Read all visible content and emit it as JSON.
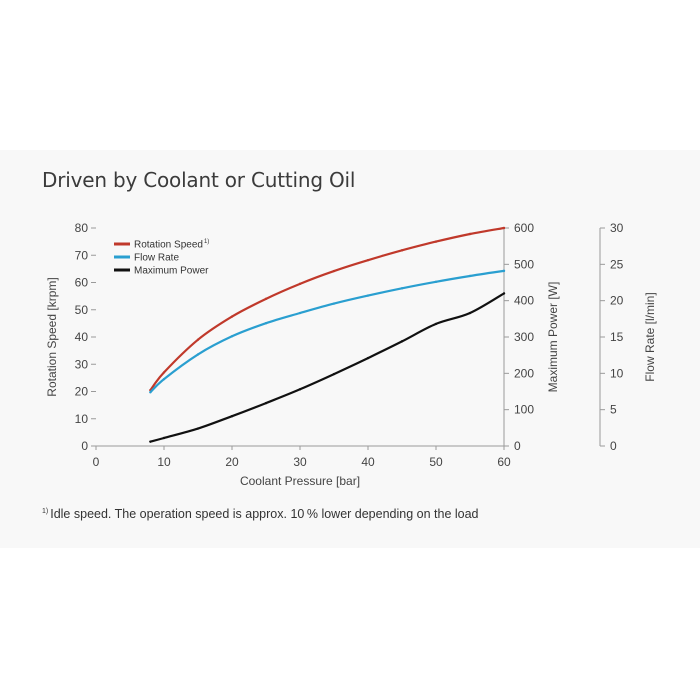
{
  "title": "Driven by Coolant or Cutting Oil",
  "footnote": {
    "marker": "1)",
    "text": "Idle speed. The operation speed is approx. 10 % lower depending on the load"
  },
  "chart_data": {
    "type": "line",
    "title": "Driven by Coolant or Cutting Oil",
    "xlabel": "Coolant Pressure [bar]",
    "xlim": [
      0,
      60
    ],
    "xticks": [
      0,
      10,
      20,
      30,
      40,
      50,
      60
    ],
    "axes": {
      "rotation": {
        "label": "Rotation Speed [krpm]",
        "lim": [
          0,
          80
        ],
        "ticks": [
          0,
          10,
          20,
          30,
          40,
          50,
          60,
          70,
          80
        ],
        "position": "left"
      },
      "power": {
        "label": "Maximum Power [W]",
        "lim": [
          0,
          600
        ],
        "ticks": [
          0,
          100,
          200,
          300,
          400,
          500,
          600
        ],
        "position": "right"
      },
      "flow": {
        "label": "Flow Rate [l/min]",
        "lim": [
          0,
          30
        ],
        "ticks": [
          0,
          5,
          10,
          15,
          20,
          25,
          30
        ],
        "position": "far-right"
      }
    },
    "legend_position": "top-left",
    "series": [
      {
        "name": "Rotation Speed",
        "name_superscript": "1)",
        "axis": "rotation",
        "color": "#c0392b",
        "x": [
          8,
          10,
          15,
          20,
          25,
          30,
          35,
          40,
          45,
          50,
          55,
          60
        ],
        "y": [
          20.5,
          27,
          39,
          47.5,
          54,
          59.5,
          64.2,
          68.2,
          71.8,
          75,
          77.8,
          80
        ]
      },
      {
        "name": "Flow Rate",
        "axis": "flow",
        "color": "#2a9fd0",
        "x": [
          8,
          10,
          15,
          20,
          25,
          30,
          35,
          40,
          45,
          50,
          55,
          60
        ],
        "y": [
          7.4,
          9.2,
          12.6,
          15.1,
          16.9,
          18.3,
          19.6,
          20.7,
          21.7,
          22.6,
          23.4,
          24.1
        ]
      },
      {
        "name": "Maximum Power",
        "axis": "power",
        "color": "#111111",
        "x": [
          8,
          10,
          15,
          20,
          25,
          30,
          35,
          40,
          45,
          50,
          55,
          60
        ],
        "y": [
          12,
          22,
          48,
          82,
          118,
          156,
          198,
          242,
          288,
          336,
          366,
          420
        ]
      }
    ]
  }
}
